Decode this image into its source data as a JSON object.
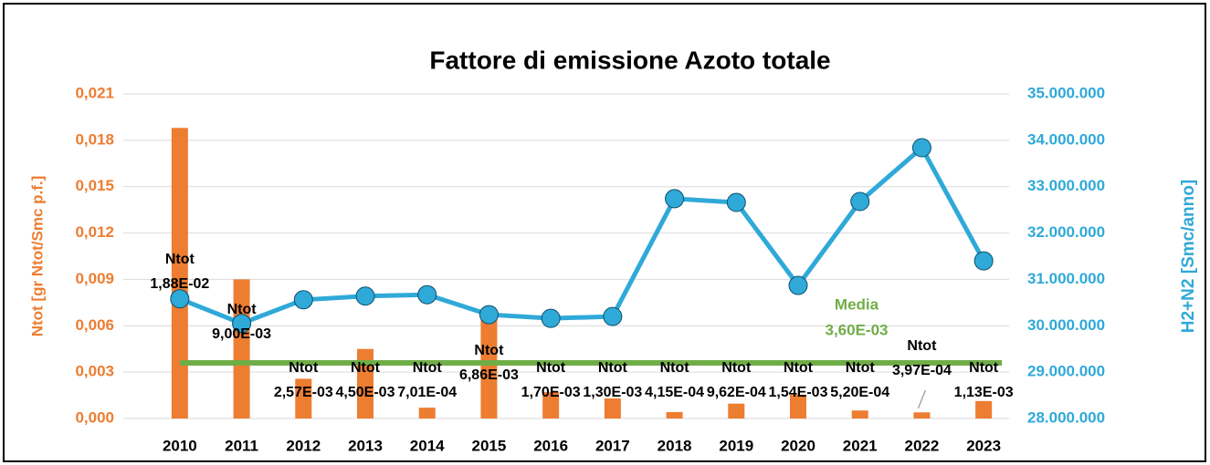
{
  "chart_data": {
    "type": "bar_line",
    "title": "Fattore di emissione Azoto totale",
    "y_label": "Ntot  [gr Ntot/Smc p.f.]",
    "y2_label": "H2+N2  [Smc/anno]",
    "categories": [
      "2010",
      "2011",
      "2012",
      "2013",
      "2014",
      "2015",
      "2016",
      "2017",
      "2018",
      "2019",
      "2020",
      "2021",
      "2022",
      "2023"
    ],
    "series": [
      {
        "name": "Ntot",
        "type": "bar",
        "color": "#ed7d31",
        "values": [
          0.0188,
          0.009,
          0.00257,
          0.0045,
          0.000701,
          0.00686,
          0.0017,
          0.0013,
          0.000415,
          0.000962,
          0.00154,
          0.00052,
          0.000397,
          0.00113
        ],
        "value_labels": [
          "1,88E-02",
          "9,00E-03",
          "2,57E-03",
          "4,50E-03",
          "7,01E-04",
          "6,86E-03",
          "1,70E-03",
          "1,30E-03",
          "4,15E-04",
          "9,62E-04",
          "1,54E-03",
          "5,20E-04",
          "3,97E-04",
          "1,13E-03"
        ]
      },
      {
        "name": "H2+N2",
        "type": "line",
        "axis": "y2",
        "color": "#2fa9d8",
        "values": [
          30580000,
          30050000,
          30560000,
          30640000,
          30670000,
          30240000,
          30160000,
          30200000,
          32740000,
          32660000,
          30870000,
          32680000,
          33840000,
          31400000
        ]
      }
    ],
    "mean": {
      "name": "Media",
      "value": 0.0036,
      "value_label": "3,60E-03",
      "color": "#70ad47"
    },
    "ylim": [
      0,
      0.021
    ],
    "yticks": [
      {
        "value": 0,
        "label": "0,000"
      },
      {
        "value": 0.003,
        "label": "0,003"
      },
      {
        "value": 0.006,
        "label": "0,006"
      },
      {
        "value": 0.009,
        "label": "0,009"
      },
      {
        "value": 0.012,
        "label": "0,012"
      },
      {
        "value": 0.015,
        "label": "0,015"
      },
      {
        "value": 0.018,
        "label": "0,018"
      },
      {
        "value": 0.021,
        "label": "0,021"
      }
    ],
    "y2lim": [
      28000000,
      35000000
    ],
    "y2ticks": [
      {
        "value": 28000000,
        "label": "28.000.000"
      },
      {
        "value": 29000000,
        "label": "29.000.000"
      },
      {
        "value": 30000000,
        "label": "30.000.000"
      },
      {
        "value": 31000000,
        "label": "31.000.000"
      },
      {
        "value": 32000000,
        "label": "32.000.000"
      },
      {
        "value": 33000000,
        "label": "33.000.000"
      },
      {
        "value": 34000000,
        "label": "34.000.000"
      },
      {
        "value": 35000000,
        "label": "35.000.000"
      }
    ],
    "grid": true
  }
}
